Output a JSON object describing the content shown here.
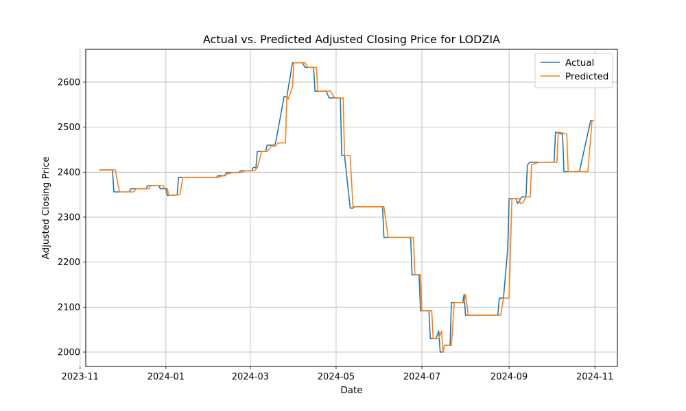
{
  "chart_data": {
    "type": "line",
    "title": "Actual vs. Predicted Adjusted Closing Price for LODZIA",
    "xlabel": "Date",
    "ylabel": "Adjusted Closing Price",
    "xlim": [
      "2023-11-05",
      "2024-11-17"
    ],
    "ylim": [
      1968,
      2673
    ],
    "x_ticks": [
      "2023-11-01",
      "2024-01-01",
      "2024-03-01",
      "2024-05-01",
      "2024-07-01",
      "2024-09-01",
      "2024-11-01"
    ],
    "x_tick_labels": [
      "2023-11",
      "2024-01",
      "2024-03",
      "2024-05",
      "2024-07",
      "2024-09",
      "2024-11"
    ],
    "y_ticks": [
      2000,
      2100,
      2200,
      2300,
      2400,
      2500,
      2600
    ],
    "grid": true,
    "legend_position": "upper right",
    "series": [
      {
        "name": "Actual",
        "color": "#1f77b4",
        "points": [
          [
            "2023-11-15",
            2405
          ],
          [
            "2023-11-24",
            2405
          ],
          [
            "2023-11-25",
            2356
          ],
          [
            "2023-12-06",
            2356
          ],
          [
            "2023-12-07",
            2363
          ],
          [
            "2023-12-18",
            2363
          ],
          [
            "2023-12-19",
            2370
          ],
          [
            "2023-12-27",
            2370
          ],
          [
            "2023-12-28",
            2363
          ],
          [
            "2024-01-01",
            2363
          ],
          [
            "2024-01-02",
            2348
          ],
          [
            "2024-01-09",
            2349
          ],
          [
            "2024-01-10",
            2388
          ],
          [
            "2024-02-06",
            2388
          ],
          [
            "2024-02-07",
            2392
          ],
          [
            "2024-02-12",
            2392
          ],
          [
            "2024-02-13",
            2399
          ],
          [
            "2024-02-22",
            2399
          ],
          [
            "2024-02-23",
            2403
          ],
          [
            "2024-03-02",
            2403
          ],
          [
            "2024-03-03",
            2410
          ],
          [
            "2024-03-05",
            2410
          ],
          [
            "2024-03-06",
            2446
          ],
          [
            "2024-03-12",
            2446
          ],
          [
            "2024-03-13",
            2460
          ],
          [
            "2024-03-18",
            2460
          ],
          [
            "2024-03-19",
            2465
          ],
          [
            "2024-03-25",
            2568
          ],
          [
            "2024-03-27",
            2568
          ],
          [
            "2024-03-31",
            2643
          ],
          [
            "2024-04-07",
            2643
          ],
          [
            "2024-04-09",
            2633
          ],
          [
            "2024-04-15",
            2633
          ],
          [
            "2024-04-16",
            2580
          ],
          [
            "2024-04-24",
            2580
          ],
          [
            "2024-04-26",
            2565
          ],
          [
            "2024-05-04",
            2565
          ],
          [
            "2024-05-05",
            2437
          ],
          [
            "2024-05-07",
            2437
          ],
          [
            "2024-05-11",
            2320
          ],
          [
            "2024-05-13",
            2320
          ],
          [
            "2024-05-14",
            2323
          ],
          [
            "2024-06-03",
            2323
          ],
          [
            "2024-06-04",
            2255
          ],
          [
            "2024-06-23",
            2255
          ],
          [
            "2024-06-24",
            2172
          ],
          [
            "2024-06-29",
            2172
          ],
          [
            "2024-06-30",
            2092
          ],
          [
            "2024-07-06",
            2092
          ],
          [
            "2024-07-07",
            2030
          ],
          [
            "2024-07-11",
            2030
          ],
          [
            "2024-07-13",
            2047
          ],
          [
            "2024-07-14",
            2000
          ],
          [
            "2024-07-16",
            2000
          ],
          [
            "2024-07-17",
            2015
          ],
          [
            "2024-07-21",
            2015
          ],
          [
            "2024-07-22",
            2110
          ],
          [
            "2024-07-30",
            2110
          ],
          [
            "2024-07-31",
            2128
          ],
          [
            "2024-08-01",
            2082
          ],
          [
            "2024-08-24",
            2082
          ],
          [
            "2024-08-25",
            2120
          ],
          [
            "2024-08-28",
            2120
          ],
          [
            "2024-08-31",
            2230
          ],
          [
            "2024-09-01",
            2341
          ],
          [
            "2024-09-06",
            2341
          ],
          [
            "2024-09-07",
            2330
          ],
          [
            "2024-09-10",
            2345
          ],
          [
            "2024-09-13",
            2345
          ],
          [
            "2024-09-14",
            2416
          ],
          [
            "2024-09-16",
            2422
          ],
          [
            "2024-10-03",
            2422
          ],
          [
            "2024-10-04",
            2489
          ],
          [
            "2024-10-09",
            2484
          ],
          [
            "2024-10-10",
            2401
          ],
          [
            "2024-10-21",
            2401
          ],
          [
            "2024-10-29",
            2515
          ],
          [
            "2024-10-31",
            2515
          ]
        ]
      },
      {
        "name": "Predicted",
        "color": "#ff7f0e",
        "points": [
          [
            "2023-11-15",
            2405
          ],
          [
            "2023-11-26",
            2405
          ],
          [
            "2023-11-29",
            2356
          ],
          [
            "2023-12-09",
            2356
          ],
          [
            "2023-12-11",
            2363
          ],
          [
            "2023-12-20",
            2363
          ],
          [
            "2023-12-21",
            2370
          ],
          [
            "2023-12-30",
            2370
          ],
          [
            "2023-12-31",
            2364
          ],
          [
            "2024-01-02",
            2364
          ],
          [
            "2024-01-03",
            2348
          ],
          [
            "2024-01-11",
            2350
          ],
          [
            "2024-01-13",
            2388
          ],
          [
            "2024-02-07",
            2388
          ],
          [
            "2024-02-13",
            2395
          ],
          [
            "2024-02-17",
            2399
          ],
          [
            "2024-02-24",
            2399
          ],
          [
            "2024-02-26",
            2403
          ],
          [
            "2024-03-04",
            2403
          ],
          [
            "2024-03-06",
            2410
          ],
          [
            "2024-03-09",
            2446
          ],
          [
            "2024-03-13",
            2446
          ],
          [
            "2024-03-16",
            2458
          ],
          [
            "2024-03-19",
            2458
          ],
          [
            "2024-03-21",
            2465
          ],
          [
            "2024-03-26",
            2465
          ],
          [
            "2024-03-27",
            2570
          ],
          [
            "2024-03-28",
            2562
          ],
          [
            "2024-03-31",
            2590
          ],
          [
            "2024-04-01",
            2643
          ],
          [
            "2024-04-09",
            2643
          ],
          [
            "2024-04-11",
            2633
          ],
          [
            "2024-04-17",
            2633
          ],
          [
            "2024-04-18",
            2580
          ],
          [
            "2024-04-27",
            2580
          ],
          [
            "2024-04-30",
            2565
          ],
          [
            "2024-05-06",
            2565
          ],
          [
            "2024-05-07",
            2437
          ],
          [
            "2024-05-11",
            2437
          ],
          [
            "2024-05-13",
            2323
          ],
          [
            "2024-06-04",
            2323
          ],
          [
            "2024-06-07",
            2255
          ],
          [
            "2024-06-25",
            2255
          ],
          [
            "2024-06-26",
            2172
          ],
          [
            "2024-06-30",
            2172
          ],
          [
            "2024-07-01",
            2092
          ],
          [
            "2024-07-08",
            2092
          ],
          [
            "2024-07-09",
            2030
          ],
          [
            "2024-07-13",
            2030
          ],
          [
            "2024-07-15",
            2047
          ],
          [
            "2024-07-16",
            2000
          ],
          [
            "2024-07-17",
            2015
          ],
          [
            "2024-07-22",
            2015
          ],
          [
            "2024-07-24",
            2110
          ],
          [
            "2024-07-31",
            2110
          ],
          [
            "2024-08-01",
            2128
          ],
          [
            "2024-08-03",
            2082
          ],
          [
            "2024-08-26",
            2082
          ],
          [
            "2024-08-28",
            2120
          ],
          [
            "2024-09-01",
            2120
          ],
          [
            "2024-09-03",
            2341
          ],
          [
            "2024-09-08",
            2341
          ],
          [
            "2024-09-09",
            2330
          ],
          [
            "2024-09-11",
            2333
          ],
          [
            "2024-09-13",
            2345
          ],
          [
            "2024-09-16",
            2345
          ],
          [
            "2024-09-17",
            2416
          ],
          [
            "2024-09-22",
            2422
          ],
          [
            "2024-10-05",
            2422
          ],
          [
            "2024-10-06",
            2489
          ],
          [
            "2024-10-12",
            2485
          ],
          [
            "2024-10-13",
            2401
          ],
          [
            "2024-10-27",
            2401
          ],
          [
            "2024-10-30",
            2515
          ],
          [
            "2024-10-31",
            2515
          ]
        ]
      }
    ]
  }
}
